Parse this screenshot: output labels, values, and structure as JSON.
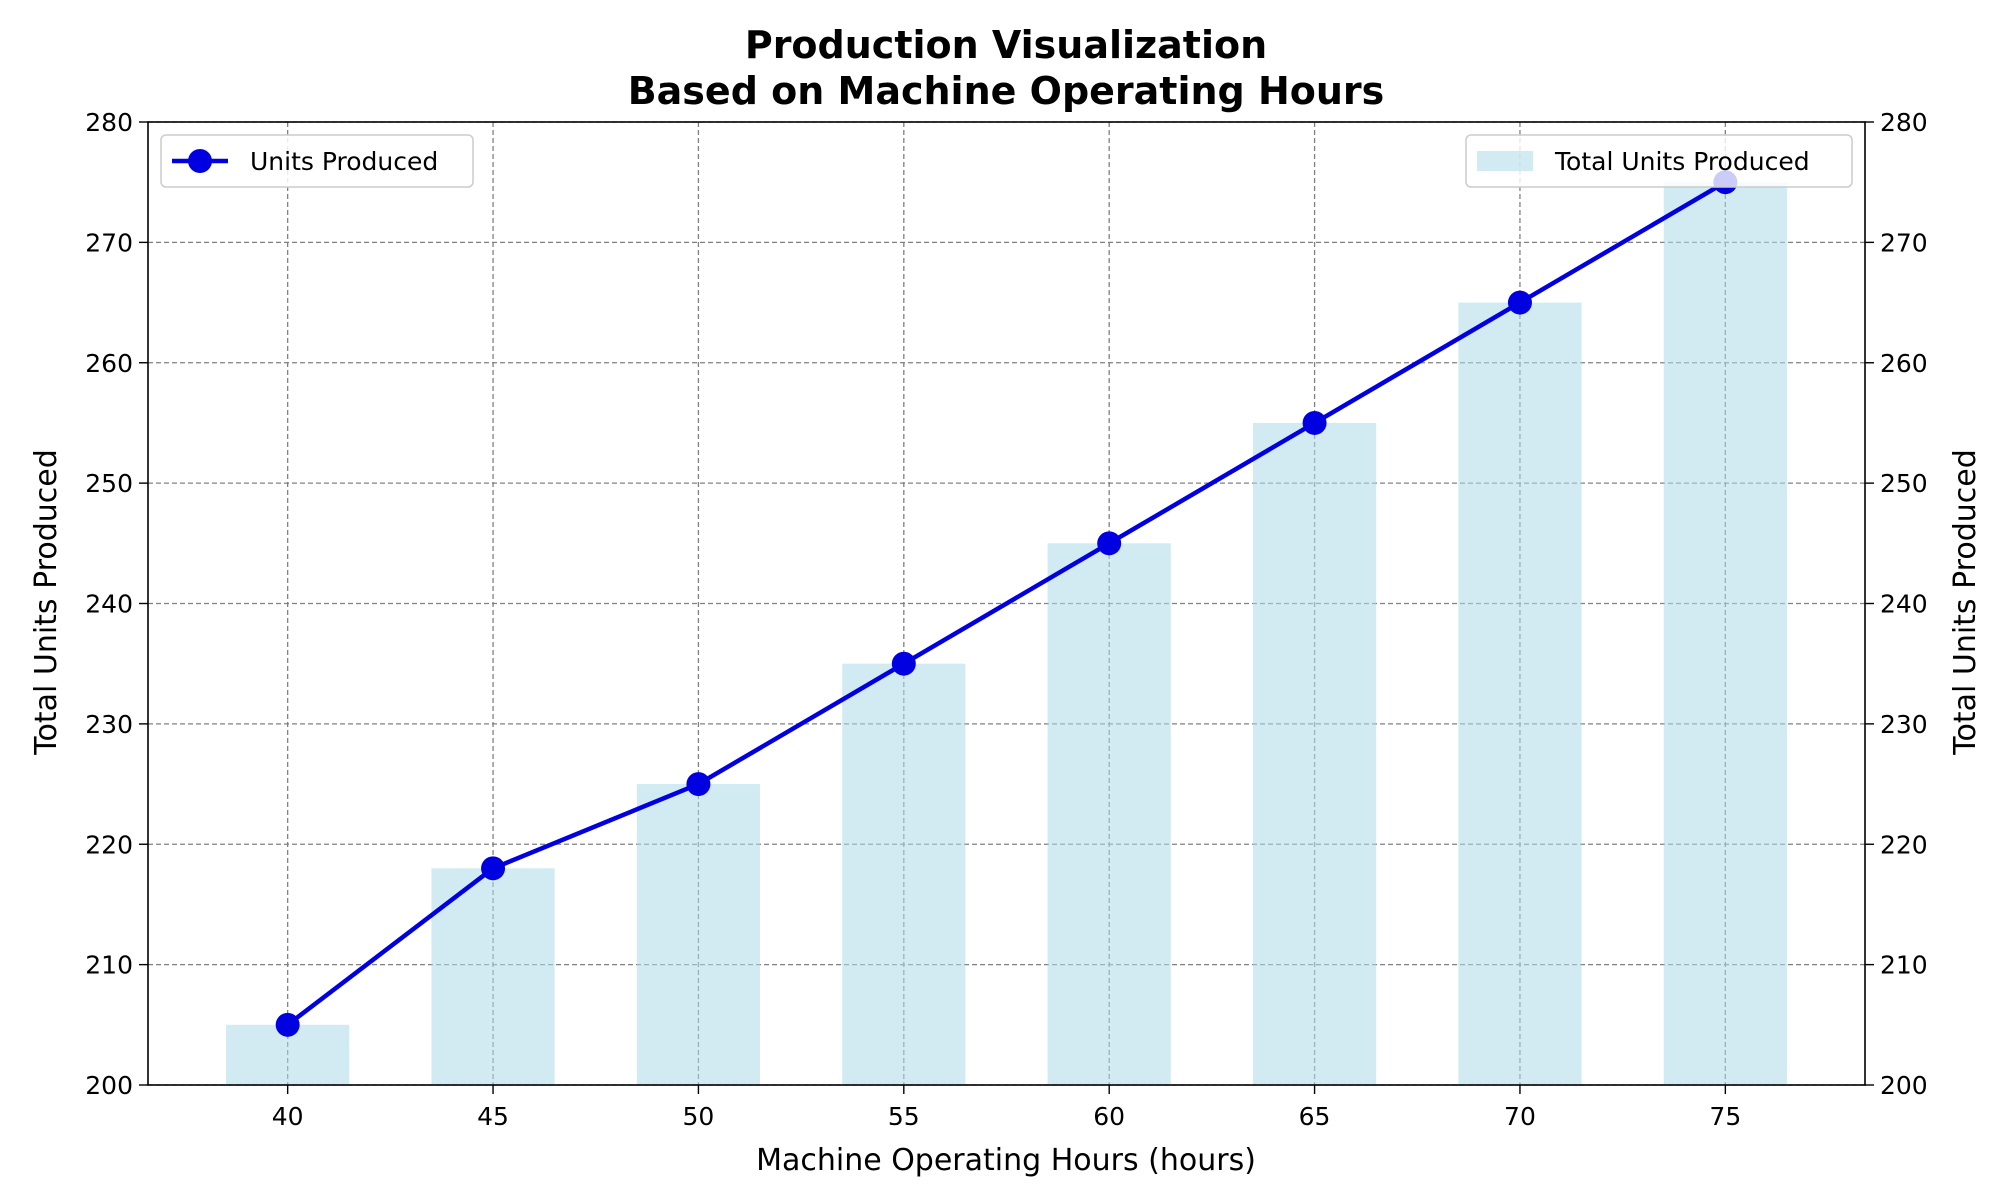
{
  "chart_data": {
    "type": "bar",
    "title": [
      "Production Visualization",
      "Based on Machine Operating Hours"
    ],
    "xlabel": "Machine Operating Hours (hours)",
    "ylabel": "Total Units Produced",
    "ylabel_right": "Total Units Produced",
    "x": [
      40,
      45,
      50,
      55,
      60,
      65,
      70,
      75
    ],
    "xlim": [
      36.6,
      78.4
    ],
    "ylim": [
      200,
      280
    ],
    "yticks": [
      200,
      210,
      220,
      230,
      240,
      250,
      260,
      270,
      280
    ],
    "grid": true,
    "bar_width": 3,
    "series": [
      {
        "name": "Total Units Produced",
        "kind": "bar",
        "axis": "right",
        "color": "#add8e6",
        "values": [
          205,
          218,
          225,
          235,
          245,
          255,
          265,
          275
        ]
      },
      {
        "name": "Units Produced",
        "kind": "line",
        "axis": "left",
        "color": "#0000e0",
        "marker": "circle",
        "values": [
          205,
          218,
          225,
          235,
          245,
          255,
          265,
          275
        ]
      }
    ],
    "legends": [
      {
        "placement": "upper-left",
        "entries": [
          "Units Produced"
        ]
      },
      {
        "placement": "upper-right",
        "entries": [
          "Total Units Produced"
        ]
      }
    ]
  }
}
